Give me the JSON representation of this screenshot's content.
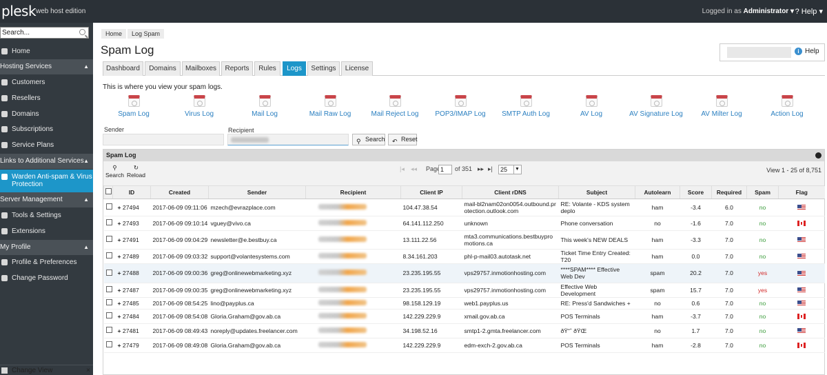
{
  "topbar": {
    "logo": "plesk",
    "edition": "web host edition",
    "logged_in_prefix": "Logged in as",
    "user": "Administrator ▾",
    "help": "? Help ▾"
  },
  "sidebar": {
    "search_placeholder": "Search...",
    "home": "Home",
    "hosting_header": "Hosting Services",
    "customers": "Customers",
    "resellers": "Resellers",
    "domains": "Domains",
    "subscriptions": "Subscriptions",
    "service_plans": "Service Plans",
    "links_header": "Links to Additional Services",
    "warden": "Warden Anti-spam & Virus Protection",
    "server_header": "Server Management",
    "tools": "Tools & Settings",
    "extensions": "Extensions",
    "profile_header": "My Profile",
    "profile_prefs": "Profile & Preferences",
    "change_password": "Change Password",
    "change_view": "Change View"
  },
  "breadcrumb": [
    "Home",
    "Log Spam"
  ],
  "page_title": "Spam Log",
  "help_label": "Help",
  "tabs": [
    "Dashboard",
    "Domains",
    "Mailboxes",
    "Reports",
    "Rules",
    "Logs",
    "Settings",
    "License"
  ],
  "intro": "This is where you view your spam logs.",
  "log_links": [
    "Spam Log",
    "Virus Log",
    "Mail Log",
    "Mail Raw Log",
    "Mail Reject Log",
    "POP3/IMAP Log",
    "SMTP Auth Log",
    "AV Log",
    "AV Signature Log",
    "AV Milter Log",
    "Action Log"
  ],
  "filters": {
    "sender_label": "Sender",
    "recipient_label": "Recipient",
    "search_btn": "Search",
    "reset_btn": "Reset"
  },
  "panel": {
    "title": "Spam Log",
    "search": "Search",
    "reload": "Reload",
    "page_label": "Page",
    "page": "1",
    "page_of": "of 351",
    "per_page": "25",
    "view_count": "View 1 - 25 of 8,751"
  },
  "columns": [
    "ID",
    "Created",
    "Sender",
    "Recipient",
    "Client IP",
    "Client rDNS",
    "Subject",
    "Autolearn",
    "Score",
    "Required",
    "Spam",
    "Flag"
  ],
  "colors": {
    "accent": "#1d96c9",
    "topbar": "#2b3137",
    "sidebar": "#333a40",
    "spam_yes": "#d22b2b",
    "spam_no": "#3a9b3a"
  },
  "rows": [
    {
      "id": "27494",
      "created": "2017-06-09 09:11:06",
      "sender": "mzech@evrazplace.com",
      "ip": "104.47.38.54",
      "rdns": "mail-bl2nam02on0054.outbound.protection.outlook.com",
      "subject": "RE: Volante - KDS system deplo",
      "autolearn": "ham",
      "score": "-3.4",
      "required": "6.0",
      "spam": "no",
      "flag": "us"
    },
    {
      "id": "27493",
      "created": "2017-06-09 09:10:14",
      "sender": "vguey@vivo.ca",
      "ip": "64.141.112.250",
      "rdns": "unknown",
      "subject": "Phone conversation",
      "autolearn": "no",
      "score": "-1.6",
      "required": "7.0",
      "spam": "no",
      "flag": "ca"
    },
    {
      "id": "27491",
      "created": "2017-06-09 09:04:29",
      "sender": "newsletter@e.bestbuy.ca",
      "ip": "13.111.22.56",
      "rdns": "mta3.communications.bestbuypromotions.ca",
      "subject": "This week's NEW DEALS",
      "autolearn": "ham",
      "score": "-3.3",
      "required": "7.0",
      "spam": "no",
      "flag": "us"
    },
    {
      "id": "27489",
      "created": "2017-06-09 09:03:32",
      "sender": "support@volantesystems.com",
      "ip": "8.34.161.203",
      "rdns": "phl-p-mail03.autotask.net",
      "subject": "Ticket Time Entry Created: T20",
      "autolearn": "ham",
      "score": "0.0",
      "required": "7.0",
      "spam": "no",
      "flag": "us"
    },
    {
      "id": "27488",
      "created": "2017-06-09 09:00:36",
      "sender": "greg@onlinewebmarketing.xyz",
      "ip": "23.235.195.55",
      "rdns": "vps29757.inmotionhosting.com",
      "subject": "****SPAM**** Effective Web Dev",
      "autolearn": "spam",
      "score": "20.2",
      "required": "7.0",
      "spam": "yes",
      "flag": "us"
    },
    {
      "id": "27487",
      "created": "2017-06-09 09:00:35",
      "sender": "greg@onlinewebmarketing.xyz",
      "ip": "23.235.195.55",
      "rdns": "vps29757.inmotionhosting.com",
      "subject": "Effective Web Development",
      "autolearn": "spam",
      "score": "15.7",
      "required": "7.0",
      "spam": "yes",
      "flag": "us"
    },
    {
      "id": "27485",
      "created": "2017-06-09 08:54:25",
      "sender": "lino@payplus.ca",
      "ip": "98.158.129.19",
      "rdns": "web1.payplus.us",
      "subject": "RE: Press'd Sandwiches +",
      "autolearn": "no",
      "score": "0.6",
      "required": "7.0",
      "spam": "no",
      "flag": "us"
    },
    {
      "id": "27484",
      "created": "2017-06-09 08:54:08",
      "sender": "Gloria.Graham@gov.ab.ca",
      "ip": "142.229.229.9",
      "rdns": "xmail.gov.ab.ca",
      "subject": "POS Terminals",
      "autolearn": "ham",
      "score": "-3.7",
      "required": "7.0",
      "spam": "no",
      "flag": "ca"
    },
    {
      "id": "27481",
      "created": "2017-06-09 08:49:43",
      "sender": "noreply@updates.freelancer.com",
      "ip": "34.198.52.16",
      "rdns": "smtp1-2.gmta.freelancer.com",
      "subject": "ðŸ“ˆ ðŸŒ",
      "autolearn": "no",
      "score": "1.7",
      "required": "7.0",
      "spam": "no",
      "flag": "us"
    },
    {
      "id": "27479",
      "created": "2017-06-09 08:49:08",
      "sender": "Gloria.Graham@gov.ab.ca",
      "ip": "142.229.229.9",
      "rdns": "edm-exch-2.gov.ab.ca",
      "subject": "POS Terminals",
      "autolearn": "ham",
      "score": "-2.8",
      "required": "7.0",
      "spam": "no",
      "flag": "ca"
    }
  ]
}
